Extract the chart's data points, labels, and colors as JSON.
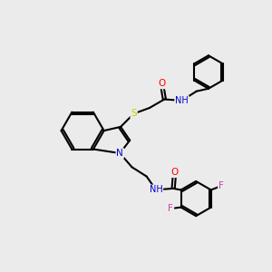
{
  "bg_color": "#ebebeb",
  "atom_colors": {
    "C": "#000000",
    "N": "#0000cd",
    "O": "#ff0000",
    "S": "#cccc00",
    "F": "#cc44aa",
    "H": "#555555"
  },
  "bond_color": "#000000",
  "bond_width": 1.5,
  "figsize": [
    3.0,
    3.0
  ],
  "dpi": 100
}
